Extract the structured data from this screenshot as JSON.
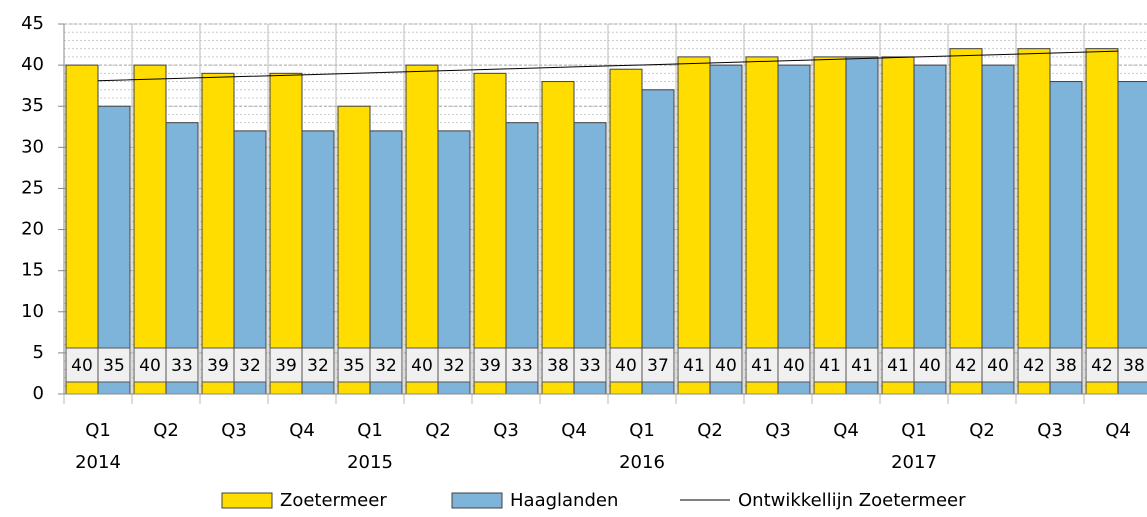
{
  "chart_data": {
    "type": "bar",
    "categories": [
      "Q1",
      "Q2",
      "Q3",
      "Q4",
      "Q1",
      "Q2",
      "Q3",
      "Q4",
      "Q1",
      "Q2",
      "Q3",
      "Q4",
      "Q1",
      "Q2",
      "Q3",
      "Q4"
    ],
    "year_labels": [
      "2014",
      "2015",
      "2016",
      "2017"
    ],
    "series": [
      {
        "name": "Zoetermeer",
        "color": "#ffdd00",
        "type": "bar",
        "values": [
          40,
          40,
          39,
          39,
          35,
          40,
          39,
          38,
          39.5,
          41,
          41,
          41,
          41,
          42,
          42,
          42
        ],
        "value_labels": [
          "40",
          "40",
          "39",
          "39",
          "35",
          "40",
          "39",
          "38",
          "40",
          "41",
          "41",
          "41",
          "41",
          "42",
          "42",
          "42"
        ]
      },
      {
        "name": "Haaglanden",
        "color": "#7eb3da",
        "type": "bar",
        "values": [
          35,
          33,
          32,
          32,
          32,
          32,
          33,
          33,
          37,
          40,
          40,
          41,
          40,
          40,
          38,
          38
        ]
      },
      {
        "name": "Ontwikkellijn Zoetermeer",
        "color": "#000000",
        "type": "line",
        "values": [
          38.1,
          38.34,
          38.58,
          38.82,
          39.06,
          39.3,
          39.54,
          39.78,
          40.02,
          40.26,
          40.5,
          40.74,
          40.98,
          41.22,
          41.46,
          41.7
        ]
      }
    ],
    "ylim": [
      0,
      45
    ],
    "yticks": [
      0,
      5,
      10,
      15,
      20,
      25,
      30,
      35,
      40,
      45
    ],
    "grid": true,
    "legend": "bottom"
  }
}
